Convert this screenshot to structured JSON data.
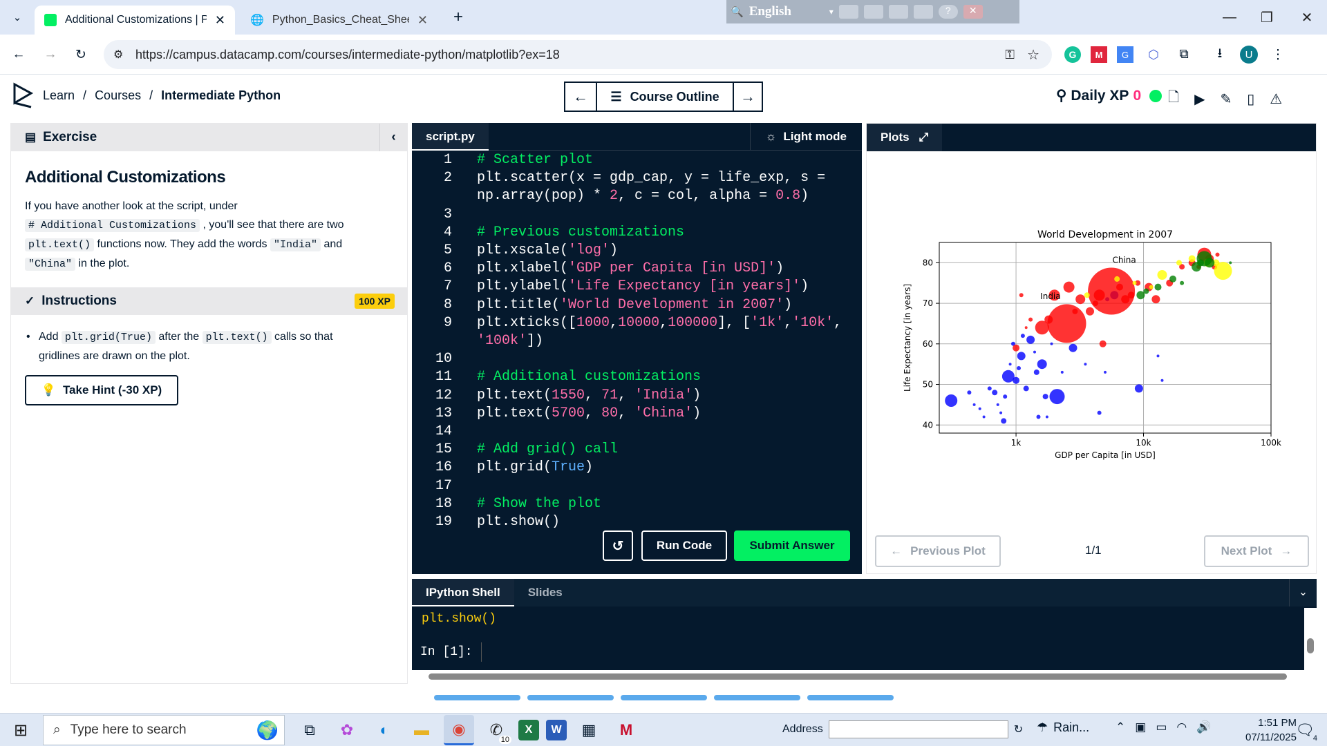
{
  "browser": {
    "tabs": [
      {
        "title": "Additional Customizations | Pyt",
        "active": true
      },
      {
        "title": "Python_Basics_Cheat_Sheet-upc",
        "active": false
      }
    ],
    "url": "https://campus.datacamp.com/courses/intermediate-python/matplotlib?ex=18",
    "translate_label": "English"
  },
  "header": {
    "breadcrumb": [
      "Learn",
      "Courses",
      "Intermediate Python"
    ],
    "course_outline": "Course Outline",
    "daily_xp_label": "Daily XP",
    "daily_xp_value": "0"
  },
  "exercise": {
    "section_title": "Exercise",
    "title": "Additional Customizations",
    "text_1": "If you have another look at the script, under",
    "code_1": "# Additional Customizations",
    "text_2": ", you'll see that there are two",
    "code_2": "plt.text()",
    "text_3": "functions now. They add the words",
    "code_3": "\"India\"",
    "text_4": "and",
    "code_4": "\"China\"",
    "text_5": "in the plot."
  },
  "instructions": {
    "title": "Instructions",
    "xp": "100 XP",
    "t1": "Add",
    "c1": "plt.grid(True)",
    "t2": "after the",
    "c2": "plt.text()",
    "t3": "calls so that",
    "t4": "gridlines are drawn on the plot.",
    "hint": "Take Hint (-30 XP)"
  },
  "editor": {
    "filename": "script.py",
    "mode": "Light mode",
    "run": "Run Code",
    "submit": "Submit Answer"
  },
  "plots": {
    "title": "Plots",
    "prev": "Previous Plot",
    "next": "Next Plot",
    "counter": "1/1"
  },
  "chart_data": {
    "type": "scatter",
    "title": "World Development in 2007",
    "xlabel": "GDP per Capita [in USD]",
    "ylabel": "Life Expectancy [in years]",
    "xscale": "log",
    "xlim": [
      250,
      100000
    ],
    "ylim": [
      38,
      85
    ],
    "xticks": [
      1000,
      10000,
      100000
    ],
    "xticklabels": [
      "1k",
      "10k",
      "100k"
    ],
    "yticks": [
      40,
      50,
      60,
      70,
      80
    ],
    "yticklabels": [
      "40",
      "50",
      "60",
      "70",
      "80"
    ],
    "grid": true,
    "annotations": [
      {
        "text": "India",
        "x": 1550,
        "y": 71
      },
      {
        "text": "China",
        "x": 5700,
        "y": 80
      }
    ],
    "colors": {
      "red": "#ff0000",
      "blue": "#0000ff",
      "green": "#008000",
      "yellow": "#ffff00"
    },
    "points": [
      [
        310,
        46,
        9,
        "blue"
      ],
      [
        430,
        48,
        3,
        "blue"
      ],
      [
        470,
        45,
        2,
        "blue"
      ],
      [
        520,
        44,
        2,
        "blue"
      ],
      [
        560,
        42,
        2,
        "blue"
      ],
      [
        620,
        49,
        3,
        "blue"
      ],
      [
        680,
        48,
        4,
        "blue"
      ],
      [
        720,
        45,
        2,
        "blue"
      ],
      [
        760,
        43,
        2,
        "blue"
      ],
      [
        800,
        41,
        4,
        "blue"
      ],
      [
        820,
        47,
        3,
        "blue"
      ],
      [
        870,
        52,
        9,
        "blue"
      ],
      [
        900,
        55,
        2,
        "blue"
      ],
      [
        950,
        60,
        3,
        "blue"
      ],
      [
        1000,
        51,
        5,
        "blue"
      ],
      [
        1050,
        54,
        3,
        "blue"
      ],
      [
        1100,
        57,
        6,
        "blue"
      ],
      [
        1130,
        62,
        3,
        "blue"
      ],
      [
        1200,
        49,
        4,
        "blue"
      ],
      [
        1300,
        61,
        6,
        "blue"
      ],
      [
        1400,
        58,
        2,
        "blue"
      ],
      [
        1450,
        53,
        4,
        "blue"
      ],
      [
        1500,
        42,
        3,
        "blue"
      ],
      [
        1600,
        55,
        7,
        "blue"
      ],
      [
        1700,
        47,
        4,
        "blue"
      ],
      [
        1750,
        42,
        2,
        "blue"
      ],
      [
        1900,
        60,
        2,
        "blue"
      ],
      [
        2100,
        47,
        11,
        "blue"
      ],
      [
        2300,
        53,
        2,
        "blue"
      ],
      [
        2800,
        59,
        6,
        "blue"
      ],
      [
        3500,
        55,
        2,
        "blue"
      ],
      [
        4500,
        43,
        3,
        "blue"
      ],
      [
        5000,
        53,
        2,
        "blue"
      ],
      [
        9200,
        49,
        6,
        "blue"
      ],
      [
        5200,
        71,
        3,
        "blue"
      ],
      [
        5900,
        72,
        6,
        "blue"
      ],
      [
        13000,
        57,
        2,
        "blue"
      ],
      [
        14000,
        51,
        2,
        "blue"
      ],
      [
        1000,
        59,
        5,
        "red"
      ],
      [
        1200,
        64,
        2,
        "red"
      ],
      [
        1300,
        66,
        3,
        "red"
      ],
      [
        1600,
        64,
        10,
        "red"
      ],
      [
        1800,
        66,
        6,
        "red"
      ],
      [
        2000,
        72,
        8,
        "red"
      ],
      [
        2500,
        65,
        28,
        "red"
      ],
      [
        2600,
        74,
        8,
        "red"
      ],
      [
        2900,
        68,
        4,
        "red"
      ],
      [
        3200,
        71,
        7,
        "red"
      ],
      [
        3800,
        68,
        6,
        "red"
      ],
      [
        4200,
        70,
        4,
        "red"
      ],
      [
        4500,
        72,
        8,
        "red"
      ],
      [
        4800,
        60,
        5,
        "red"
      ],
      [
        5600,
        73,
        34,
        "red"
      ],
      [
        6500,
        74,
        5,
        "red"
      ],
      [
        7200,
        71,
        6,
        "red"
      ],
      [
        8000,
        72,
        5,
        "red"
      ],
      [
        9000,
        75,
        4,
        "red"
      ],
      [
        11000,
        74,
        6,
        "red"
      ],
      [
        12500,
        71,
        6,
        "red"
      ],
      [
        16000,
        75,
        5,
        "red"
      ],
      [
        20000,
        79,
        4,
        "red"
      ],
      [
        24000,
        80,
        5,
        "red"
      ],
      [
        27000,
        79,
        3,
        "red"
      ],
      [
        30000,
        82,
        10,
        "red"
      ],
      [
        33000,
        81,
        6,
        "red"
      ],
      [
        36000,
        79,
        4,
        "red"
      ],
      [
        38000,
        82,
        3,
        "red"
      ],
      [
        1100,
        72,
        3,
        "red"
      ],
      [
        3600,
        72,
        4,
        "yellow"
      ],
      [
        6200,
        76,
        4,
        "yellow"
      ],
      [
        8500,
        75,
        3,
        "yellow"
      ],
      [
        11500,
        74,
        3,
        "yellow"
      ],
      [
        14000,
        77,
        7,
        "yellow"
      ],
      [
        19000,
        80,
        4,
        "yellow"
      ],
      [
        24000,
        81,
        5,
        "yellow"
      ],
      [
        32000,
        80,
        6,
        "yellow"
      ],
      [
        37000,
        80,
        5,
        "yellow"
      ],
      [
        42000,
        78,
        13,
        "yellow"
      ],
      [
        30000,
        81,
        11,
        "green"
      ],
      [
        9500,
        72,
        6,
        "green"
      ],
      [
        10500,
        73,
        4,
        "green"
      ],
      [
        13000,
        74,
        5,
        "green"
      ],
      [
        17000,
        76,
        5,
        "green"
      ],
      [
        20000,
        75,
        3,
        "green"
      ],
      [
        26000,
        79,
        7,
        "green"
      ],
      [
        28000,
        80,
        5,
        "green"
      ],
      [
        33000,
        80,
        7,
        "green"
      ],
      [
        48000,
        80,
        2,
        "green"
      ]
    ]
  },
  "shell": {
    "tabs": [
      "IPython Shell",
      "Slides"
    ],
    "output": "plt.show()",
    "prompt": "In [1]:"
  },
  "taskbar": {
    "search_placeholder": "Type here to search",
    "address_label": "Address",
    "weather": "Rain...",
    "time": "1:51 PM",
    "date": "07/11/2025",
    "whatsapp_badge": "10",
    "notif_badge": "4"
  }
}
